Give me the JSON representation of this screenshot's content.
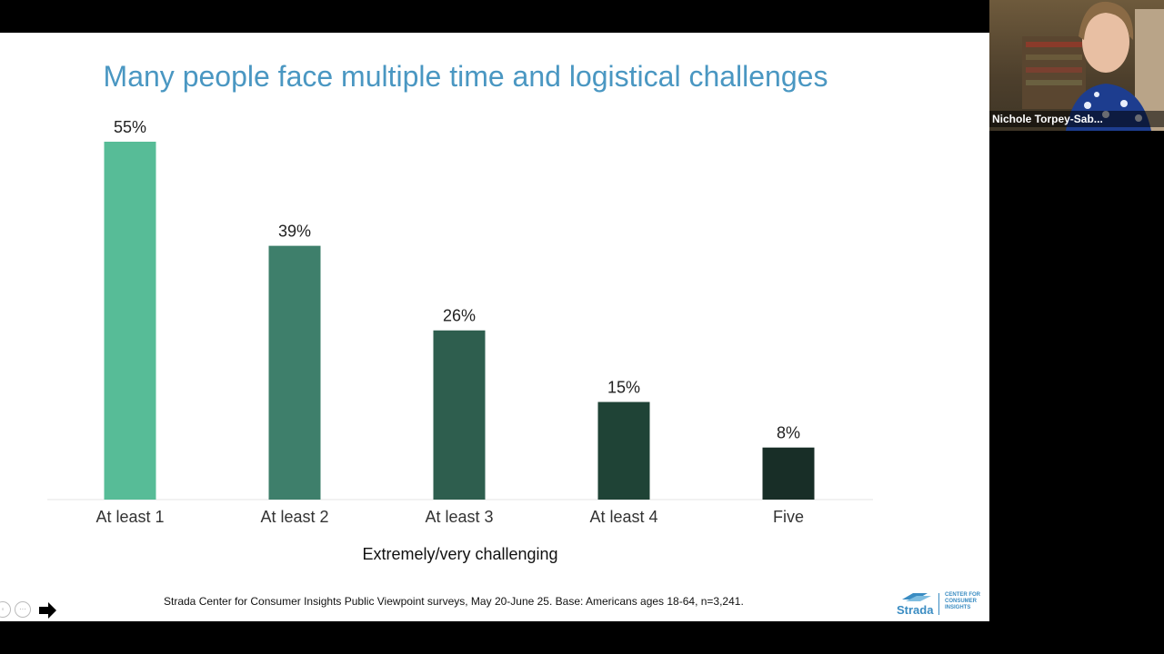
{
  "slide": {
    "title": "Many people face multiple time and logistical challenges",
    "source": "Strada Center for Consumer Insights Public Viewpoint surveys, May 20-June 25. Base: Americans ages 18-64, n=3,241.",
    "logo": {
      "brand": "Strada",
      "center_text": "CENTER FOR\nCONSUMER\nINSIGHTS"
    }
  },
  "chart_data": {
    "type": "bar",
    "title": "Many people face multiple time and logistical challenges",
    "categories": [
      "At least 1",
      "At least 2",
      "At least 3",
      "At least 4",
      "Five"
    ],
    "values": [
      55,
      39,
      26,
      15,
      8
    ],
    "value_labels": [
      "55%",
      "39%",
      "26%",
      "15%",
      "8%"
    ],
    "xlabel": "Extremely/very challenging",
    "ylabel": "",
    "ylim": [
      0,
      55
    ],
    "grid": false,
    "legend": "none",
    "colors": [
      "#57bc97",
      "#3e7f6b",
      "#2e5e4e",
      "#1f4336",
      "#182e27"
    ]
  },
  "video": {
    "participant_name": "Nichole Torpey-Sab..."
  }
}
